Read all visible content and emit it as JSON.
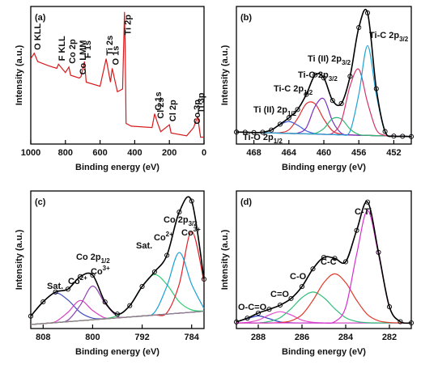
{
  "chart_data": [
    {
      "type": "line",
      "title": "(a)",
      "xlabel": "Binding energy (eV)",
      "ylabel": "Intensity (a.u.)",
      "x": [
        1000,
        980,
        960,
        900,
        850,
        840,
        800,
        780,
        770,
        720,
        710,
        690,
        680,
        600,
        565,
        540,
        530,
        500,
        470,
        459,
        455,
        450,
        420,
        300,
        285,
        270,
        250,
        200,
        190,
        100,
        60,
        37,
        20,
        0
      ],
      "xlim": [
        1000,
        0
      ],
      "xticks": [
        1000,
        800,
        600,
        400,
        200,
        0
      ],
      "ylim": [
        0,
        100
      ],
      "smooth": false,
      "series": [
        {
          "color": "#d7191c",
          "values": [
            62,
            66,
            60,
            57,
            55,
            58,
            52,
            56,
            50,
            48,
            49,
            60,
            45,
            42,
            62,
            45,
            55,
            38,
            40,
            96,
            70,
            15,
            13,
            12,
            22,
            16,
            9,
            14,
            8,
            6,
            12,
            20,
            5,
            5
          ]
        }
      ],
      "annotations": [
        {
          "text": "O KLL",
          "x": 980
        },
        {
          "text": "F KLL",
          "x": 840
        },
        {
          "text": "Co 2p",
          "x": 780
        },
        {
          "text": "Co LMM",
          "x": 720
        },
        {
          "text": "F 1s",
          "x": 690
        },
        {
          "text": "Ti 2s",
          "x": 565
        },
        {
          "text": "O 1s",
          "x": 530
        },
        {
          "text": "Ti 2p",
          "x": 459
        },
        {
          "text": "C 1s",
          "x": 285
        },
        {
          "text": "Cl 2s",
          "x": 270
        },
        {
          "text": "Cl 2p",
          "x": 200
        },
        {
          "text": "Co 3p",
          "x": 60
        },
        {
          "text": "Ti 3p",
          "x": 37
        }
      ]
    },
    {
      "type": "line",
      "title": "(b)",
      "xlabel": "Binding energy (eV)",
      "ylabel": "Intensity (a.u.)",
      "x": [
        470,
        469,
        468,
        467,
        466,
        465,
        464,
        463,
        462,
        461,
        460,
        459,
        458,
        457,
        456,
        455,
        454,
        453,
        452,
        451,
        450
      ],
      "xlim": [
        470,
        450
      ],
      "xticks": [
        468,
        464,
        460,
        456,
        452
      ],
      "ylim": [
        0,
        92
      ],
      "smooth": true,
      "series": [
        {
          "name": "Ti-O 2p1/2",
          "color": "#3b5bdb",
          "values": [
            8,
            7.9,
            7.7,
            7.9,
            9.4,
            13,
            15.1,
            12.6,
            8.8,
            7,
            6.5,
            6.4,
            6.2,
            6.1,
            5.9,
            5.8,
            5.6,
            5.5,
            5.3,
            5.2,
            5
          ]
        },
        {
          "name": "Ti (II) 2p1/2",
          "color": "#e03131",
          "values": [
            8,
            7.9,
            7.7,
            7.6,
            7.4,
            7.6,
            9.5,
            17.1,
            27,
            26.9,
            16.6,
            8.8,
            6.5,
            6.1,
            5.9,
            5.8,
            5.6,
            5.5,
            5.3,
            5.2,
            5
          ]
        },
        {
          "name": "Ti-C 2p1/2",
          "color": "#7b2fbf",
          "values": [
            8,
            7.9,
            7.7,
            7.6,
            7.4,
            7.3,
            7.1,
            7.3,
            11,
            25.2,
            30.2,
            15.2,
            7.2,
            6.1,
            5.9,
            5.8,
            5.6,
            5.5,
            5.3,
            5.2,
            5
          ]
        },
        {
          "name": "Ti-O 2p3/2",
          "color": "#2bb673",
          "values": [
            8,
            7.9,
            7.7,
            7.6,
            7.4,
            7.3,
            7.1,
            7,
            6.8,
            7.1,
            10.4,
            17,
            16.8,
            10,
            6.4,
            5.8,
            5.6,
            5.5,
            5.3,
            5.2,
            5
          ]
        },
        {
          "name": "Ti (II) 2p3/2",
          "color": "#d6336c",
          "values": [
            8,
            7.9,
            7.7,
            7.6,
            7.4,
            7.3,
            7.1,
            7,
            6.8,
            6.7,
            6.5,
            7.3,
            15.2,
            38.8,
            50,
            27.7,
            9.6,
            5.8,
            5.3,
            5.2,
            5
          ]
        },
        {
          "name": "Ti-C 2p3/2",
          "color": "#1fa2d6",
          "values": [
            8,
            7.9,
            7.7,
            7.6,
            7.4,
            7.3,
            7.1,
            7,
            6.8,
            6.7,
            6.5,
            6.4,
            6.2,
            8.6,
            33.3,
            65.8,
            33,
            8.1,
            5.3,
            5.2,
            5
          ]
        },
        {
          "color": "#000000",
          "marker": "circle",
          "values": [
            8,
            7.9,
            7.7,
            7.9,
            9.4,
            13.3,
            17.5,
            23.1,
            33.2,
            46.2,
            44.2,
            29.1,
            27.1,
            45.3,
            77.9,
            87.7,
            37,
            8.4,
            5.3,
            5.2,
            5
          ]
        }
      ]
    },
    {
      "type": "line",
      "title": "(c)",
      "xlabel": "Binding energy (eV)",
      "ylabel": "Intensity (a.u.)",
      "x": [
        810,
        808,
        806,
        804,
        802,
        800,
        798,
        796,
        794,
        792,
        790,
        788,
        786,
        784,
        782
      ],
      "xlim": [
        810,
        782
      ],
      "xticks": [
        808,
        800,
        792,
        784
      ],
      "ylim": [
        0,
        102
      ],
      "smooth": true,
      "series": [
        {
          "name": "Sat.",
          "color": "#3b4cc0",
          "values": [
            9.2,
            19.8,
            26.4,
            21.2,
            12,
            7.7,
            7.3,
            7.9,
            8.6,
            9.3,
            10,
            10.7,
            11.4,
            12.1,
            12.8
          ]
        },
        {
          "name": "Co2+",
          "color": "#d63fbf",
          "values": [
            3,
            3.7,
            5.1,
            12,
            20.8,
            13.4,
            7.9,
            7.9,
            8.6,
            9.3,
            10,
            10.7,
            11.4,
            12.1,
            12.8
          ]
        },
        {
          "name": "Co3+",
          "color": "#8e44ad",
          "values": [
            3,
            3.7,
            4.4,
            6.2,
            17.3,
            31.5,
            18.7,
            9,
            8.6,
            9.3,
            10,
            10.7,
            11.4,
            12.1,
            12.8
          ]
        },
        {
          "name": "Sat.",
          "color": "#2ecc71",
          "values": [
            3,
            3.7,
            4.4,
            5.1,
            5.8,
            6.5,
            7.4,
            9.6,
            17,
            31.2,
            40,
            32.6,
            19.8,
            13.8,
            13
          ]
        },
        {
          "name": "Co2+",
          "color": "#1ca0d6",
          "values": [
            3,
            3.7,
            4.4,
            5.1,
            5.8,
            6.5,
            7.2,
            7.9,
            8.6,
            9.3,
            12,
            31.4,
            56.4,
            32.8,
            14.8
          ]
        },
        {
          "name": "Co3+",
          "color": "#e0202a",
          "values": [
            3,
            3.7,
            4.4,
            5.1,
            5.8,
            6.5,
            7.2,
            7.9,
            8.6,
            9.3,
            10,
            11.7,
            33,
            72.1,
            34.4
          ]
        },
        {
          "color": "#000000",
          "marker": "circle",
          "values": [
            9.2,
            19.8,
            27.1,
            29.2,
            38.5,
            39.6,
            19.7,
            10.7,
            17,
            31.2,
            42,
            54.3,
            86.4,
            94.5,
            36.6
          ]
        },
        {
          "color": "#888888",
          "values": [
            3,
            3.7,
            4.4,
            5.1,
            5.8,
            6.5,
            7.2,
            7.9,
            8.6,
            9.3,
            10,
            10.7,
            11.4,
            12.1,
            12.8
          ]
        }
      ],
      "annotations": [
        {
          "text": "Co 2p1/2"
        },
        {
          "text": "Co 2p3/2"
        }
      ]
    },
    {
      "type": "line",
      "title": "(d)",
      "xlabel": "Binding energy (eV)",
      "ylabel": "Intensity (a.u.)",
      "x": [
        289,
        288.5,
        288,
        287.5,
        287,
        286.5,
        286,
        285.5,
        285,
        284.5,
        284,
        283.5,
        283,
        282.5,
        282,
        281.5,
        281
      ],
      "xlim": [
        289,
        281
      ],
      "xticks": [
        288,
        286,
        284,
        282
      ],
      "ylim": [
        0,
        98
      ],
      "smooth": true,
      "series": [
        {
          "name": "O-C=O",
          "color": "#2c3fb8",
          "values": [
            4.7,
            7,
            9,
            7,
            4.7,
            4.1,
            4,
            4,
            4,
            4,
            4,
            4,
            4,
            4,
            4,
            4,
            4
          ]
        },
        {
          "name": "C=O",
          "color": "#e04ac8",
          "values": [
            4,
            4.4,
            6,
            9.7,
            12,
            9.7,
            6,
            4.4,
            4,
            4,
            4,
            4,
            4,
            4,
            4,
            4,
            4
          ]
        },
        {
          "name": "C-O",
          "color": "#2ebd7a",
          "values": [
            4,
            4,
            4,
            5,
            7.7,
            14.1,
            22,
            26,
            22,
            14.1,
            7.7,
            5,
            4.2,
            4,
            4,
            4,
            4
          ]
        },
        {
          "name": "C-C",
          "color": "#e03a2a",
          "values": [
            4,
            4,
            4,
            4,
            4.3,
            5.5,
            9.9,
            20.1,
            32.7,
            39,
            32.7,
            20.1,
            9.9,
            5.5,
            4.3,
            4,
            4
          ]
        },
        {
          "name": "C-Ti",
          "color": "#d62fd0",
          "values": [
            4,
            4,
            4,
            4,
            4,
            4,
            4,
            4,
            4,
            4.9,
            15.2,
            52.8,
            84,
            52.8,
            15.2,
            4.9,
            4
          ]
        },
        {
          "color": "#000000",
          "marker": "circle",
          "values": [
            4.7,
            7.4,
            11,
            13.7,
            16.7,
            21.4,
            29.9,
            42.5,
            50.7,
            50,
            47.6,
            69.9,
            90.1,
            54.3,
            15.5,
            4.9,
            4
          ]
        }
      ]
    }
  ]
}
